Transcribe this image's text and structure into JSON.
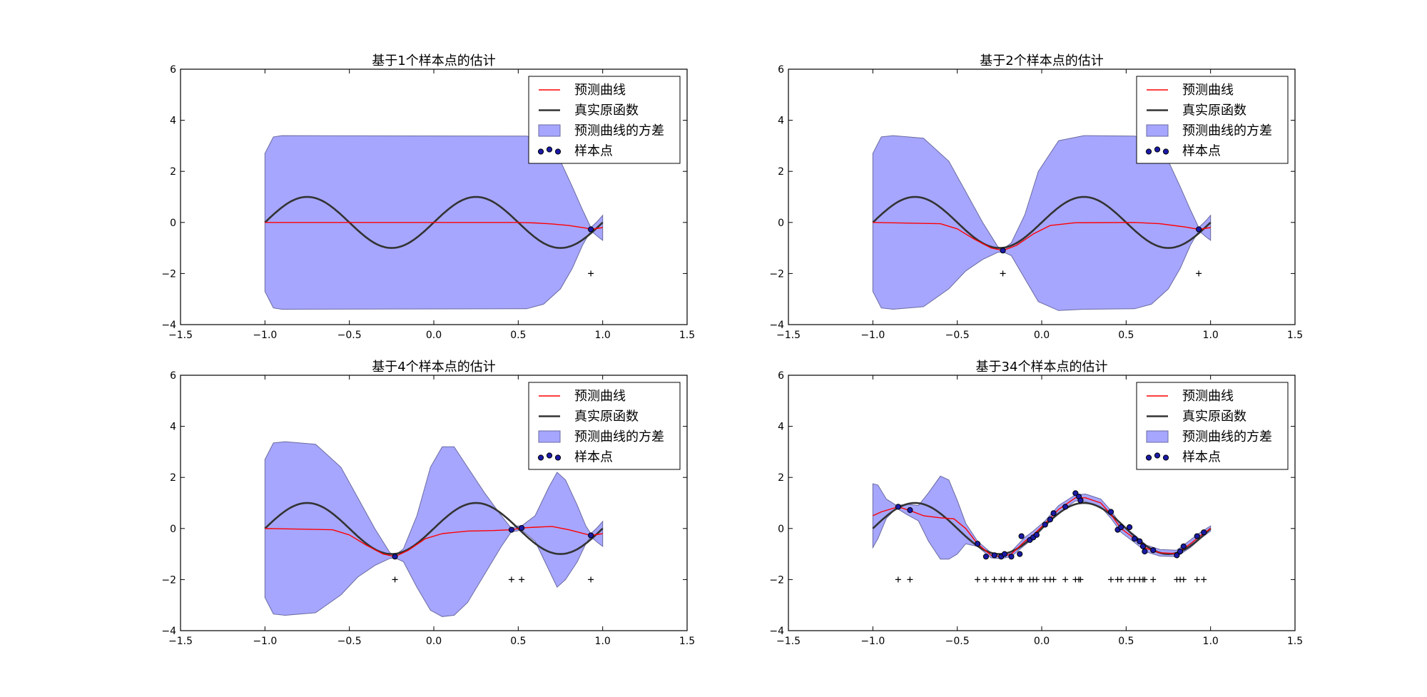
{
  "figure": {
    "background": "#ffffff"
  },
  "legend_labels": [
    "预测曲线",
    "真实原函数",
    "预测曲线的方差",
    "样本点"
  ],
  "styles": {
    "prediction_color": "#ff0000",
    "true_color": "#333333",
    "variance_fill": "#a6a6ff",
    "variance_edge": "#6a6aa0",
    "sample_fill": "#1a1aa6",
    "sample_edge": "#000000",
    "marker_color": "#000000"
  },
  "chart_data": [
    {
      "type": "line",
      "title": "基于1个样本点的估计",
      "xlim": [
        -1.5,
        1.5
      ],
      "ylim": [
        -4,
        6
      ],
      "xticks": [
        "-1.5",
        "-1.0",
        "-0.5",
        "0.0",
        "0.5",
        "1.0",
        "1.5"
      ],
      "yticks": [
        "-4",
        "-2",
        "0",
        "2",
        "4",
        "6"
      ],
      "legend_position": "top-right",
      "grid": false,
      "samples": [
        [
          0.93,
          -0.27
        ]
      ],
      "markers": [
        0.93
      ],
      "marker_y": -2,
      "prediction": [
        [
          -1.0,
          0
        ],
        [
          0.5,
          0
        ],
        [
          0.6,
          -0.02
        ],
        [
          0.7,
          -0.06
        ],
        [
          0.8,
          -0.12
        ],
        [
          0.9,
          -0.22
        ],
        [
          0.93,
          -0.27
        ],
        [
          1.0,
          -0.2
        ]
      ],
      "variance_upper": [
        [
          -1.0,
          2.7
        ],
        [
          -0.95,
          3.35
        ],
        [
          -0.9,
          3.4
        ],
        [
          0.55,
          3.38
        ],
        [
          0.65,
          3.2
        ],
        [
          0.75,
          2.4
        ],
        [
          0.82,
          1.4
        ],
        [
          0.88,
          0.5
        ],
        [
          0.93,
          -0.2
        ],
        [
          0.97,
          0.05
        ],
        [
          1.0,
          0.28
        ]
      ],
      "variance_lower": [
        [
          -1.0,
          -2.7
        ],
        [
          -0.95,
          -3.35
        ],
        [
          -0.9,
          -3.4
        ],
        [
          0.55,
          -3.38
        ],
        [
          0.65,
          -3.2
        ],
        [
          0.75,
          -2.6
        ],
        [
          0.82,
          -1.8
        ],
        [
          0.88,
          -0.9
        ],
        [
          0.93,
          -0.32
        ],
        [
          0.97,
          -0.55
        ],
        [
          1.0,
          -0.7
        ]
      ]
    },
    {
      "type": "line",
      "title": "基于2个样本点的估计",
      "xlim": [
        -1.5,
        1.5
      ],
      "ylim": [
        -4,
        6
      ],
      "xticks": [
        "-1.5",
        "-1.0",
        "-0.5",
        "0.0",
        "0.5",
        "1.0",
        "1.5"
      ],
      "yticks": [
        "-4",
        "-2",
        "0",
        "2",
        "4",
        "6"
      ],
      "legend_position": "top-right",
      "grid": false,
      "samples": [
        [
          -0.23,
          -1.1
        ],
        [
          0.93,
          -0.27
        ]
      ],
      "markers": [
        -0.23,
        0.93
      ],
      "marker_y": -2,
      "prediction": [
        [
          -1.0,
          0
        ],
        [
          -0.6,
          -0.05
        ],
        [
          -0.5,
          -0.25
        ],
        [
          -0.4,
          -0.65
        ],
        [
          -0.3,
          -1.0
        ],
        [
          -0.23,
          -1.1
        ],
        [
          -0.15,
          -0.9
        ],
        [
          -0.05,
          -0.45
        ],
        [
          0.05,
          -0.12
        ],
        [
          0.2,
          -0.01
        ],
        [
          0.55,
          0
        ],
        [
          0.7,
          -0.05
        ],
        [
          0.85,
          -0.18
        ],
        [
          0.93,
          -0.27
        ],
        [
          1.0,
          -0.2
        ]
      ],
      "variance_upper": [
        [
          -1.0,
          2.7
        ],
        [
          -0.95,
          3.35
        ],
        [
          -0.88,
          3.4
        ],
        [
          -0.7,
          3.3
        ],
        [
          -0.55,
          2.4
        ],
        [
          -0.45,
          1.2
        ],
        [
          -0.35,
          0
        ],
        [
          -0.26,
          -0.95
        ],
        [
          -0.23,
          -1.05
        ],
        [
          -0.18,
          -0.8
        ],
        [
          -0.1,
          0.3
        ],
        [
          -0.02,
          2.0
        ],
        [
          0.1,
          3.2
        ],
        [
          0.25,
          3.4
        ],
        [
          0.55,
          3.38
        ],
        [
          0.65,
          3.2
        ],
        [
          0.75,
          2.4
        ],
        [
          0.82,
          1.4
        ],
        [
          0.88,
          0.5
        ],
        [
          0.93,
          -0.2
        ],
        [
          0.97,
          0.05
        ],
        [
          1.0,
          0.28
        ]
      ],
      "variance_lower": [
        [
          -1.0,
          -2.7
        ],
        [
          -0.95,
          -3.35
        ],
        [
          -0.88,
          -3.4
        ],
        [
          -0.7,
          -3.3
        ],
        [
          -0.55,
          -2.6
        ],
        [
          -0.45,
          -1.9
        ],
        [
          -0.35,
          -1.45
        ],
        [
          -0.26,
          -1.17
        ],
        [
          -0.23,
          -1.15
        ],
        [
          -0.18,
          -1.3
        ],
        [
          -0.1,
          -2.2
        ],
        [
          -0.02,
          -3.1
        ],
        [
          0.1,
          -3.45
        ],
        [
          0.25,
          -3.4
        ],
        [
          0.55,
          -3.38
        ],
        [
          0.65,
          -3.2
        ],
        [
          0.75,
          -2.6
        ],
        [
          0.82,
          -1.8
        ],
        [
          0.88,
          -0.9
        ],
        [
          0.93,
          -0.32
        ],
        [
          0.97,
          -0.55
        ],
        [
          1.0,
          -0.7
        ]
      ]
    },
    {
      "type": "line",
      "title": "基于4个样本点的估计",
      "xlim": [
        -1.5,
        1.5
      ],
      "ylim": [
        -4,
        6
      ],
      "xticks": [
        "-1.5",
        "-1.0",
        "-0.5",
        "0.0",
        "0.5",
        "1.0",
        "1.5"
      ],
      "yticks": [
        "-4",
        "-2",
        "0",
        "2",
        "4",
        "6"
      ],
      "legend_position": "top-right",
      "grid": false,
      "samples": [
        [
          -0.23,
          -1.1
        ],
        [
          0.46,
          -0.05
        ],
        [
          0.52,
          0.02
        ],
        [
          0.93,
          -0.27
        ]
      ],
      "markers": [
        -0.23,
        0.46,
        0.52,
        0.93
      ],
      "marker_y": -2,
      "prediction": [
        [
          -1.0,
          0
        ],
        [
          -0.6,
          -0.05
        ],
        [
          -0.5,
          -0.25
        ],
        [
          -0.4,
          -0.65
        ],
        [
          -0.3,
          -1.0
        ],
        [
          -0.23,
          -1.1
        ],
        [
          -0.15,
          -0.85
        ],
        [
          -0.05,
          -0.4
        ],
        [
          0.05,
          -0.2
        ],
        [
          0.2,
          -0.1
        ],
        [
          0.35,
          -0.08
        ],
        [
          0.46,
          -0.05
        ],
        [
          0.52,
          0.02
        ],
        [
          0.6,
          0.05
        ],
        [
          0.7,
          0.08
        ],
        [
          0.8,
          -0.05
        ],
        [
          0.9,
          -0.22
        ],
        [
          0.93,
          -0.27
        ],
        [
          1.0,
          -0.2
        ]
      ],
      "variance_upper": [
        [
          -1.0,
          2.7
        ],
        [
          -0.95,
          3.35
        ],
        [
          -0.88,
          3.4
        ],
        [
          -0.7,
          3.3
        ],
        [
          -0.55,
          2.4
        ],
        [
          -0.45,
          1.2
        ],
        [
          -0.35,
          0
        ],
        [
          -0.26,
          -0.95
        ],
        [
          -0.23,
          -1.05
        ],
        [
          -0.18,
          -0.8
        ],
        [
          -0.1,
          0.5
        ],
        [
          -0.02,
          2.4
        ],
        [
          0.05,
          3.2
        ],
        [
          0.12,
          3.2
        ],
        [
          0.2,
          2.4
        ],
        [
          0.3,
          1.4
        ],
        [
          0.4,
          0.5
        ],
        [
          0.46,
          0
        ],
        [
          0.49,
          0.1
        ],
        [
          0.52,
          0.1
        ],
        [
          0.6,
          0.5
        ],
        [
          0.68,
          1.6
        ],
        [
          0.73,
          2.2
        ],
        [
          0.78,
          1.9
        ],
        [
          0.85,
          0.9
        ],
        [
          0.9,
          0.1
        ],
        [
          0.93,
          -0.2
        ],
        [
          0.97,
          0.05
        ],
        [
          1.0,
          0.28
        ]
      ],
      "variance_lower": [
        [
          -1.0,
          -2.7
        ],
        [
          -0.95,
          -3.35
        ],
        [
          -0.88,
          -3.4
        ],
        [
          -0.7,
          -3.3
        ],
        [
          -0.55,
          -2.6
        ],
        [
          -0.45,
          -1.9
        ],
        [
          -0.35,
          -1.45
        ],
        [
          -0.26,
          -1.17
        ],
        [
          -0.23,
          -1.15
        ],
        [
          -0.18,
          -1.3
        ],
        [
          -0.1,
          -2.3
        ],
        [
          -0.02,
          -3.2
        ],
        [
          0.05,
          -3.45
        ],
        [
          0.12,
          -3.4
        ],
        [
          0.2,
          -2.9
        ],
        [
          0.3,
          -1.8
        ],
        [
          0.4,
          -0.7
        ],
        [
          0.46,
          -0.12
        ],
        [
          0.49,
          -0.1
        ],
        [
          0.52,
          -0.06
        ],
        [
          0.6,
          -0.5
        ],
        [
          0.68,
          -1.6
        ],
        [
          0.73,
          -2.3
        ],
        [
          0.78,
          -2.0
        ],
        [
          0.85,
          -1.3
        ],
        [
          0.9,
          -0.6
        ],
        [
          0.93,
          -0.32
        ],
        [
          0.97,
          -0.55
        ],
        [
          1.0,
          -0.7
        ]
      ]
    },
    {
      "type": "line",
      "title": "基于34个样本点的估计",
      "xlim": [
        -1.5,
        1.5
      ],
      "ylim": [
        -4,
        6
      ],
      "xticks": [
        "-1.5",
        "-1.0",
        "-0.5",
        "0.0",
        "0.5",
        "1.0",
        "1.5"
      ],
      "yticks": [
        "-4",
        "-2",
        "0",
        "2",
        "4",
        "6"
      ],
      "legend_position": "top-right",
      "grid": false,
      "samples": [
        [
          -0.85,
          0.85
        ],
        [
          -0.78,
          0.72
        ],
        [
          -0.38,
          -0.6
        ],
        [
          -0.33,
          -1.1
        ],
        [
          -0.28,
          -1.05
        ],
        [
          -0.24,
          -1.1
        ],
        [
          -0.22,
          -1.0
        ],
        [
          -0.18,
          -1.1
        ],
        [
          -0.13,
          -1.0
        ],
        [
          -0.12,
          -0.3
        ],
        [
          -0.07,
          -0.45
        ],
        [
          -0.05,
          -0.35
        ],
        [
          -0.03,
          -0.25
        ],
        [
          0.02,
          0.15
        ],
        [
          0.05,
          0.35
        ],
        [
          0.07,
          0.6
        ],
        [
          0.14,
          0.85
        ],
        [
          0.2,
          1.38
        ],
        [
          0.22,
          1.25
        ],
        [
          0.23,
          1.1
        ],
        [
          0.41,
          0.65
        ],
        [
          0.45,
          -0.05
        ],
        [
          0.47,
          0.05
        ],
        [
          0.52,
          0.05
        ],
        [
          0.55,
          -0.4
        ],
        [
          0.58,
          -0.5
        ],
        [
          0.6,
          -0.7
        ],
        [
          0.61,
          -0.9
        ],
        [
          0.66,
          -0.85
        ],
        [
          0.8,
          -1.05
        ],
        [
          0.82,
          -0.9
        ],
        [
          0.84,
          -0.7
        ],
        [
          0.92,
          -0.3
        ],
        [
          0.96,
          -0.15
        ]
      ],
      "markers": [
        -0.85,
        -0.78,
        -0.38,
        -0.33,
        -0.28,
        -0.24,
        -0.22,
        -0.18,
        -0.13,
        -0.12,
        -0.07,
        -0.05,
        -0.03,
        0.02,
        0.05,
        0.07,
        0.14,
        0.2,
        0.22,
        0.23,
        0.41,
        0.45,
        0.47,
        0.52,
        0.55,
        0.58,
        0.6,
        0.61,
        0.66,
        0.8,
        0.82,
        0.84,
        0.92,
        0.96
      ],
      "marker_y": -2,
      "prediction": [
        [
          -1.0,
          0.5
        ],
        [
          -0.95,
          0.65
        ],
        [
          -0.85,
          0.85
        ],
        [
          -0.78,
          0.7
        ],
        [
          -0.7,
          0.5
        ],
        [
          -0.6,
          0.42
        ],
        [
          -0.52,
          0.38
        ],
        [
          -0.45,
          0.0
        ],
        [
          -0.38,
          -0.6
        ],
        [
          -0.3,
          -1.05
        ],
        [
          -0.24,
          -1.1
        ],
        [
          -0.18,
          -1.0
        ],
        [
          -0.1,
          -0.5
        ],
        [
          -0.05,
          -0.25
        ],
        [
          0.02,
          0.2
        ],
        [
          0.1,
          0.75
        ],
        [
          0.2,
          1.2
        ],
        [
          0.26,
          1.2
        ],
        [
          0.35,
          1.0
        ],
        [
          0.41,
          0.55
        ],
        [
          0.47,
          0.0
        ],
        [
          0.55,
          -0.4
        ],
        [
          0.62,
          -0.78
        ],
        [
          0.7,
          -0.95
        ],
        [
          0.8,
          -0.98
        ],
        [
          0.88,
          -0.6
        ],
        [
          0.94,
          -0.28
        ],
        [
          1.0,
          0
        ]
      ],
      "variance_upper": [
        [
          -1.0,
          1.75
        ],
        [
          -0.97,
          1.7
        ],
        [
          -0.92,
          1.15
        ],
        [
          -0.86,
          0.9
        ],
        [
          -0.8,
          0.95
        ],
        [
          -0.73,
          0.9
        ],
        [
          -0.67,
          1.4
        ],
        [
          -0.6,
          2.05
        ],
        [
          -0.55,
          1.9
        ],
        [
          -0.5,
          1.1
        ],
        [
          -0.45,
          0.2
        ],
        [
          -0.38,
          -0.5
        ],
        [
          -0.3,
          -0.95
        ],
        [
          -0.24,
          -1.02
        ],
        [
          -0.18,
          -0.9
        ],
        [
          -0.1,
          -0.35
        ],
        [
          -0.05,
          -0.1
        ],
        [
          0.02,
          0.3
        ],
        [
          0.1,
          0.9
        ],
        [
          0.2,
          1.32
        ],
        [
          0.26,
          1.35
        ],
        [
          0.35,
          1.15
        ],
        [
          0.41,
          0.7
        ],
        [
          0.47,
          0.15
        ],
        [
          0.55,
          -0.25
        ],
        [
          0.62,
          -0.65
        ],
        [
          0.7,
          -0.82
        ],
        [
          0.8,
          -0.85
        ],
        [
          0.88,
          -0.45
        ],
        [
          0.94,
          -0.15
        ],
        [
          1.0,
          0.1
        ]
      ],
      "variance_lower": [
        [
          -1.0,
          -0.75
        ],
        [
          -0.97,
          -0.4
        ],
        [
          -0.92,
          0.4
        ],
        [
          -0.86,
          0.8
        ],
        [
          -0.8,
          0.55
        ],
        [
          -0.73,
          0.3
        ],
        [
          -0.67,
          -0.5
        ],
        [
          -0.6,
          -1.2
        ],
        [
          -0.55,
          -1.2
        ],
        [
          -0.5,
          -1.0
        ],
        [
          -0.45,
          -0.6
        ],
        [
          -0.38,
          -0.7
        ],
        [
          -0.3,
          -1.15
        ],
        [
          -0.24,
          -1.18
        ],
        [
          -0.18,
          -1.1
        ],
        [
          -0.1,
          -0.65
        ],
        [
          -0.05,
          -0.4
        ],
        [
          0.02,
          0.1
        ],
        [
          0.1,
          0.6
        ],
        [
          0.2,
          1.08
        ],
        [
          0.26,
          1.05
        ],
        [
          0.35,
          0.85
        ],
        [
          0.41,
          0.4
        ],
        [
          0.47,
          -0.15
        ],
        [
          0.55,
          -0.55
        ],
        [
          0.62,
          -0.92
        ],
        [
          0.7,
          -1.08
        ],
        [
          0.8,
          -1.1
        ],
        [
          0.88,
          -0.75
        ],
        [
          0.94,
          -0.4
        ],
        [
          1.0,
          -0.1
        ]
      ]
    }
  ]
}
